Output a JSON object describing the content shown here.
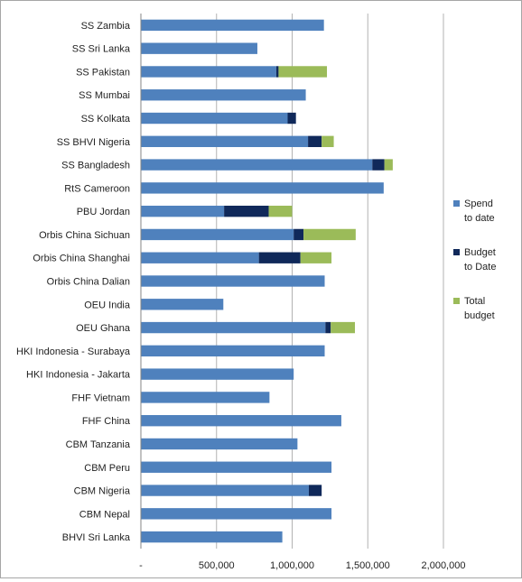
{
  "chart_data": {
    "type": "bar",
    "orientation": "horizontal",
    "stacked": true,
    "categories": [
      "SS Zambia",
      "SS Sri Lanka",
      "SS Pakistan",
      "SS Mumbai",
      "SS Kolkata",
      "SS BHVI Nigeria",
      "SS Bangladesh",
      "RtS Cameroon",
      "PBU Jordan",
      "Orbis China Sichuan",
      "Orbis China Shanghai",
      "Orbis China Dalian",
      "OEU India",
      "OEU Ghana",
      "HKI Indonesia - Surabaya",
      "HKI Indonesia - Jakarta",
      "FHF Vietnam",
      "FHF China",
      "CBM Tanzania",
      "CBM Peru",
      "CBM Nigeria",
      "CBM Nepal",
      "BHVI Sri Lanka"
    ],
    "series": [
      {
        "name": "Spend to date",
        "color": "#4f81bd",
        "values": [
          1210000,
          770000,
          895000,
          1090000,
          970000,
          1105000,
          1530000,
          1605000,
          550000,
          1010000,
          780000,
          1215000,
          545000,
          1220000,
          1215000,
          1010000,
          850000,
          1325000,
          1035000,
          1260000,
          1110000,
          1260000,
          935000
        ]
      },
      {
        "name": "Budget to Date",
        "color": "#10295a",
        "values": [
          0,
          0,
          15000,
          0,
          55000,
          90000,
          80000,
          0,
          295000,
          65000,
          275000,
          0,
          0,
          35000,
          0,
          0,
          0,
          0,
          0,
          0,
          85000,
          0,
          0
        ]
      },
      {
        "name": "Total budget",
        "color": "#9bbb59",
        "values": [
          0,
          0,
          320000,
          0,
          0,
          80000,
          55000,
          0,
          155000,
          345000,
          205000,
          0,
          0,
          160000,
          0,
          0,
          0,
          0,
          0,
          0,
          0,
          0,
          0
        ]
      }
    ],
    "x_tick_labels": [
      "-",
      "500,000",
      "1,000,000",
      "1,500,000",
      "2,000,000"
    ],
    "xlim": [
      0,
      2000000
    ],
    "grid": true,
    "legend_position": "right",
    "legend": [
      "Spend to date",
      "Budget to Date",
      "Total budget"
    ],
    "legend_lines": [
      [
        "Spend",
        "to date"
      ],
      [
        "Budget",
        "to Date"
      ],
      [
        "Total",
        "budget"
      ]
    ]
  }
}
